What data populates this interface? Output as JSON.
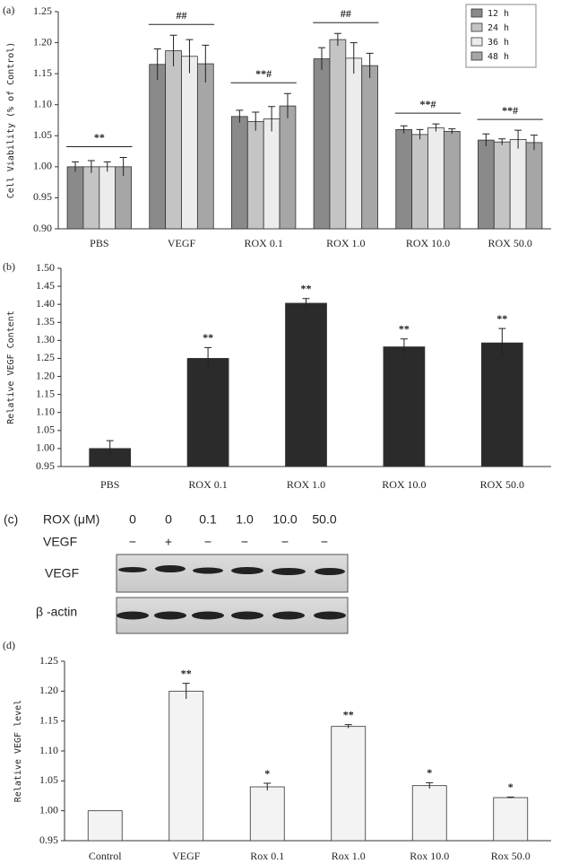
{
  "chart_data": [
    {
      "type": "bar",
      "label": "(a)",
      "ylabel": "Cell Viability (% of Control)",
      "categories": [
        "PBS",
        "VEGF",
        "ROX 0.1",
        "ROX 1.0",
        "ROX 10.0",
        "ROX 50.0"
      ],
      "series": [
        {
          "name": "12 h",
          "color": "#8a8a8a",
          "values": [
            1.0,
            1.165,
            1.081,
            1.174,
            1.06,
            1.043
          ],
          "errors": [
            0.008,
            0.025,
            0.01,
            0.018,
            0.006,
            0.01
          ]
        },
        {
          "name": "24 h",
          "color": "#c4c4c4",
          "values": [
            1.0,
            1.187,
            1.073,
            1.205,
            1.052,
            1.04
          ],
          "errors": [
            0.01,
            0.025,
            0.015,
            0.01,
            0.008,
            0.005
          ]
        },
        {
          "name": "36 h",
          "color": "#ececec",
          "values": [
            1.0,
            1.178,
            1.077,
            1.175,
            1.063,
            1.044
          ],
          "errors": [
            0.008,
            0.027,
            0.02,
            0.025,
            0.006,
            0.015
          ]
        },
        {
          "name": "48 h",
          "color": "#a6a6a6",
          "values": [
            1.0,
            1.166,
            1.098,
            1.163,
            1.057,
            1.039
          ],
          "errors": [
            0.015,
            0.03,
            0.02,
            0.02,
            0.004,
            0.012
          ]
        }
      ],
      "annotations": [
        "**",
        "##",
        "**#",
        "##",
        "**#",
        "**#"
      ],
      "annotation_line": true,
      "ylim": [
        0.9,
        1.25
      ],
      "yticks": [
        {
          "value": 0.9,
          "label": "0.90"
        },
        0.95,
        {
          "value": 1.0,
          "label": "1.00"
        },
        1.05,
        {
          "value": 1.1,
          "label": "1.10"
        },
        1.15,
        {
          "value": 1.2,
          "label": "1.20"
        },
        1.25
      ],
      "legend": "top-right"
    },
    {
      "type": "bar",
      "label": "(b)",
      "ylabel": "Relative VEGF Content",
      "categories": [
        "PBS",
        "ROX 0.1",
        "ROX 1.0",
        "ROX 10.0",
        "ROX 50.0"
      ],
      "values": [
        1.0,
        1.25,
        1.403,
        1.282,
        1.293
      ],
      "errors": [
        0.022,
        0.03,
        0.013,
        0.022,
        0.04
      ],
      "color": "#2b2b2b",
      "annotations": [
        null,
        "**",
        "**",
        "**",
        "**"
      ],
      "annotation_line": false,
      "ylim": [
        0.95,
        1.5
      ],
      "yticks": [
        0.95,
        {
          "value": 1.0,
          "label": "1.00"
        },
        1.05,
        {
          "value": 1.1,
          "label": "1.10"
        },
        1.15,
        {
          "value": 1.2,
          "label": "1.20"
        },
        1.25,
        {
          "value": 1.3,
          "label": "1.30"
        },
        1.35,
        {
          "value": 1.4,
          "label": "1.40"
        },
        1.45,
        {
          "value": 1.5,
          "label": "1.50"
        }
      ]
    },
    {
      "type": "bar",
      "label": "(d)",
      "ylabel": "Relative VEGF level",
      "categories": [
        "Control",
        "VEGF",
        "Rox 0.1",
        "Rox 1.0",
        "Rox 10.0",
        "Rox 50.0"
      ],
      "values": [
        1.0,
        1.2,
        1.04,
        1.141,
        1.042,
        1.022
      ],
      "errors": [
        null,
        0.013,
        0.006,
        0.003,
        0.005,
        0.001
      ],
      "color": "#f3f3f3",
      "annotations": [
        null,
        "**",
        "*",
        "**",
        "*",
        "*"
      ],
      "annotation_line": false,
      "ylim": [
        0.95,
        1.25
      ],
      "yticks": [
        0.95,
        {
          "value": 1.0,
          "label": "1.00"
        },
        1.05,
        {
          "value": 1.1,
          "label": "1.10"
        },
        1.15,
        {
          "value": 1.2,
          "label": "1.20"
        },
        1.25
      ]
    }
  ],
  "blot": {
    "label": "(c)",
    "rows": [
      {
        "name": "ROX (μM)",
        "values": [
          "0",
          "0",
          "0.1",
          "1.0",
          "10.0",
          "50.0"
        ]
      },
      {
        "name": "VEGF",
        "values": [
          "−",
          "+",
          "−",
          "−",
          "−",
          "−"
        ]
      }
    ],
    "bands": [
      "VEGF",
      "β -actin"
    ]
  }
}
